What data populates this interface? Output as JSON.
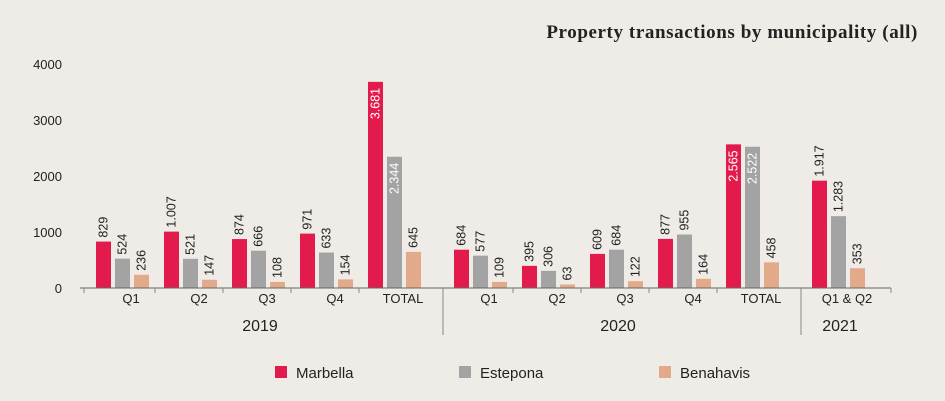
{
  "chart_data": {
    "type": "bar",
    "title": "Property transactions by municipality (all)",
    "ylim": [
      0,
      4000
    ],
    "yticks": [
      0,
      1000,
      2000,
      3000,
      4000
    ],
    "grid": false,
    "legend_position": "bottom",
    "groups": [
      {
        "label": "2019",
        "categories": [
          "Q1",
          "Q2",
          "Q3",
          "Q4",
          "TOTAL"
        ]
      },
      {
        "label": "2020",
        "categories": [
          "Q1",
          "Q2",
          "Q3",
          "Q4",
          "TOTAL"
        ]
      },
      {
        "label": "2021",
        "categories": [
          "Q1 & Q2"
        ]
      }
    ],
    "series": [
      {
        "name": "Marbella",
        "color": "#e31a4c",
        "values": [
          829,
          1007,
          874,
          971,
          3681,
          684,
          395,
          609,
          877,
          2565,
          1917
        ],
        "labels": [
          "829",
          "1.007",
          "874",
          "971",
          "3.681",
          "684",
          "395",
          "609",
          "877",
          "2.565",
          "1.917"
        ]
      },
      {
        "name": "Estepona",
        "color": "#a3a3a3",
        "values": [
          524,
          521,
          666,
          633,
          2344,
          577,
          306,
          684,
          955,
          2522,
          1283
        ],
        "labels": [
          "524",
          "521",
          "666",
          "633",
          "2.344",
          "577",
          "306",
          "684",
          "955",
          "2.522",
          "1.283"
        ]
      },
      {
        "name": "Benahavis",
        "color": "#e2a98a",
        "values": [
          236,
          147,
          108,
          154,
          645,
          109,
          63,
          122,
          164,
          458,
          353
        ],
        "labels": [
          "236",
          "147",
          "108",
          "154",
          "645",
          "109",
          "63",
          "122",
          "164",
          "458",
          "353"
        ]
      }
    ]
  }
}
